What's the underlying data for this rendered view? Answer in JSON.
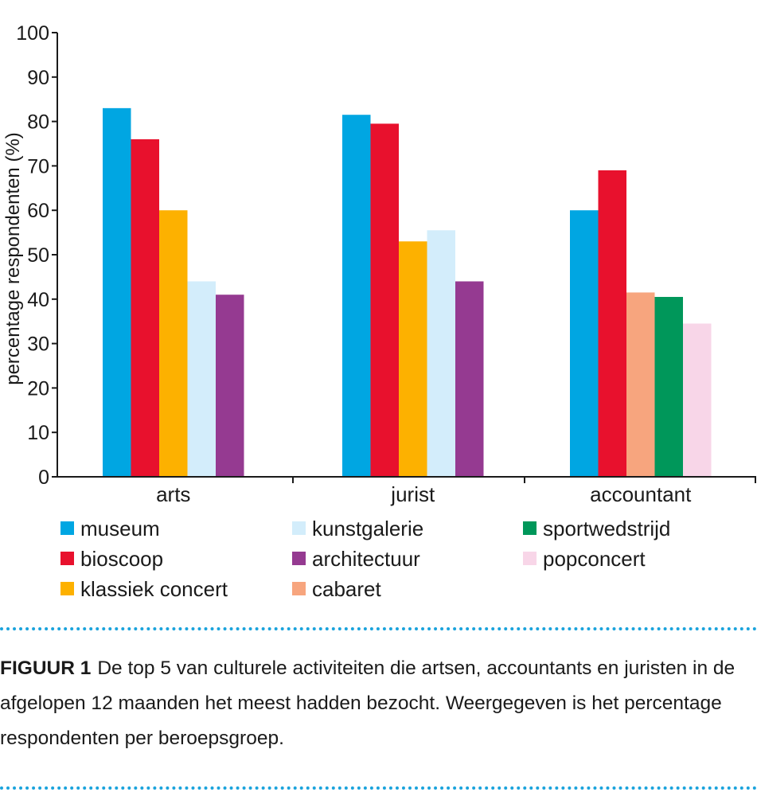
{
  "chart_data": {
    "type": "bar",
    "ylabel": "percentage respondenten (%)",
    "xlabel": "",
    "ylim": [
      0,
      100
    ],
    "yticks": [
      0,
      10,
      20,
      30,
      40,
      50,
      60,
      70,
      80,
      90,
      100
    ],
    "groups": [
      {
        "name": "arts",
        "bars": [
          {
            "series": "museum",
            "value": 83
          },
          {
            "series": "bioscoop",
            "value": 76
          },
          {
            "series": "klassiek concert",
            "value": 60
          },
          {
            "series": "kunstgalerie",
            "value": 44
          },
          {
            "series": "architectuur",
            "value": 41
          }
        ]
      },
      {
        "name": "jurist",
        "bars": [
          {
            "series": "museum",
            "value": 81.5
          },
          {
            "series": "bioscoop",
            "value": 79.5
          },
          {
            "series": "klassiek concert",
            "value": 53
          },
          {
            "series": "kunstgalerie",
            "value": 55.5
          },
          {
            "series": "architectuur",
            "value": 44
          }
        ]
      },
      {
        "name": "accountant",
        "bars": [
          {
            "series": "museum",
            "value": 60
          },
          {
            "series": "bioscoop",
            "value": 69
          },
          {
            "series": "cabaret",
            "value": 41.5
          },
          {
            "series": "sportwedstrijd",
            "value": 40.5
          },
          {
            "series": "popconcert",
            "value": 34.5
          }
        ]
      }
    ],
    "legend": [
      {
        "name": "museum",
        "color": "#00a6e2"
      },
      {
        "name": "bioscoop",
        "color": "#e8112d"
      },
      {
        "name": "klassiek concert",
        "color": "#fdb100"
      },
      {
        "name": "kunstgalerie",
        "color": "#d3edfb"
      },
      {
        "name": "architectuur",
        "color": "#953a91"
      },
      {
        "name": "cabaret",
        "color": "#f7a57e"
      },
      {
        "name": "sportwedstrijd",
        "color": "#00975a"
      },
      {
        "name": "popconcert",
        "color": "#f8d6e8"
      }
    ]
  },
  "caption": {
    "label": "FIGUUR 1",
    "text": "De top 5 van culturele activiteiten die artsen, accountants en juristen in de afgelopen 12 maanden het meest hadden bezocht. Weergegeven is het percentage respondenten per beroepsgroep."
  }
}
